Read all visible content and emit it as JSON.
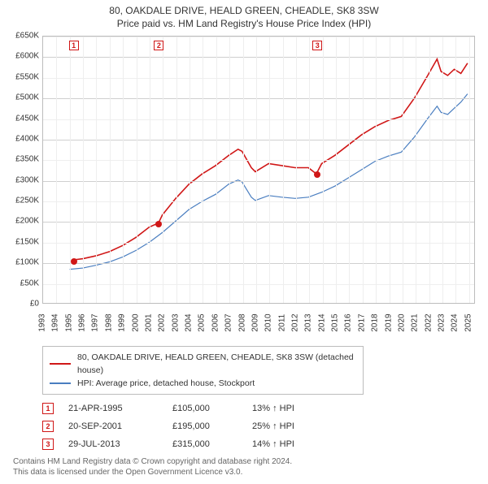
{
  "title_line1": "80, OAKDALE DRIVE, HEALD GREEN, CHEADLE, SK8 3SW",
  "title_line2": "Price paid vs. HM Land Registry's House Price Index (HPI)",
  "chart": {
    "type": "line",
    "background_color": "#ffffff",
    "border_color": "#bcbcbc",
    "grid_major_color": "#cfcfcf",
    "grid_minor_color": "#eeeeee",
    "text_color": "#333333",
    "label_fontsize": 10,
    "x": {
      "min": 1993,
      "max": 2025.5,
      "ticks": [
        1993,
        1994,
        1995,
        1996,
        1997,
        1998,
        1999,
        2000,
        2001,
        2002,
        2003,
        2004,
        2005,
        2006,
        2007,
        2008,
        2009,
        2010,
        2011,
        2012,
        2013,
        2014,
        2015,
        2016,
        2017,
        2018,
        2019,
        2020,
        2021,
        2022,
        2023,
        2024,
        2025
      ]
    },
    "y": {
      "min": 0,
      "max": 650000,
      "tick_step": 50000,
      "labels": [
        "£0",
        "£50K",
        "£100K",
        "£150K",
        "£200K",
        "£250K",
        "£300K",
        "£350K",
        "£400K",
        "£450K",
        "£500K",
        "£550K",
        "£600K",
        "£650K"
      ]
    },
    "series": [
      {
        "name": "80, OAKDALE DRIVE, HEALD GREEN, CHEADLE, SK8 3SW (detached house)",
        "color": "#d01717",
        "width": 1.6,
        "points": [
          [
            1995.3,
            105000
          ],
          [
            1996,
            108000
          ],
          [
            1997,
            115000
          ],
          [
            1998,
            125000
          ],
          [
            1999,
            140000
          ],
          [
            2000,
            160000
          ],
          [
            2001,
            185000
          ],
          [
            2001.7,
            195000
          ],
          [
            2002,
            215000
          ],
          [
            2003,
            255000
          ],
          [
            2004,
            290000
          ],
          [
            2005,
            315000
          ],
          [
            2006,
            335000
          ],
          [
            2007,
            360000
          ],
          [
            2007.7,
            375000
          ],
          [
            2008,
            370000
          ],
          [
            2008.7,
            330000
          ],
          [
            2009,
            320000
          ],
          [
            2010,
            340000
          ],
          [
            2011,
            335000
          ],
          [
            2012,
            330000
          ],
          [
            2013,
            330000
          ],
          [
            2013.6,
            315000
          ],
          [
            2014,
            340000
          ],
          [
            2015,
            360000
          ],
          [
            2016,
            385000
          ],
          [
            2017,
            410000
          ],
          [
            2018,
            430000
          ],
          [
            2019,
            445000
          ],
          [
            2020,
            455000
          ],
          [
            2021,
            500000
          ],
          [
            2022,
            555000
          ],
          [
            2022.7,
            595000
          ],
          [
            2023,
            565000
          ],
          [
            2023.5,
            555000
          ],
          [
            2024,
            570000
          ],
          [
            2024.5,
            560000
          ],
          [
            2025,
            585000
          ]
        ]
      },
      {
        "name": "HPI: Average price, detached house, Stockport",
        "color": "#4a7ec0",
        "width": 1.2,
        "points": [
          [
            1995,
            82000
          ],
          [
            1996,
            85000
          ],
          [
            1997,
            92000
          ],
          [
            1998,
            100000
          ],
          [
            1999,
            112000
          ],
          [
            2000,
            128000
          ],
          [
            2001,
            148000
          ],
          [
            2002,
            172000
          ],
          [
            2003,
            200000
          ],
          [
            2004,
            228000
          ],
          [
            2005,
            248000
          ],
          [
            2006,
            265000
          ],
          [
            2007,
            290000
          ],
          [
            2007.7,
            300000
          ],
          [
            2008,
            295000
          ],
          [
            2008.7,
            258000
          ],
          [
            2009,
            250000
          ],
          [
            2010,
            262000
          ],
          [
            2011,
            258000
          ],
          [
            2012,
            255000
          ],
          [
            2013,
            258000
          ],
          [
            2014,
            270000
          ],
          [
            2015,
            285000
          ],
          [
            2016,
            305000
          ],
          [
            2017,
            325000
          ],
          [
            2018,
            345000
          ],
          [
            2019,
            358000
          ],
          [
            2020,
            368000
          ],
          [
            2021,
            405000
          ],
          [
            2022,
            450000
          ],
          [
            2022.7,
            480000
          ],
          [
            2023,
            465000
          ],
          [
            2023.5,
            460000
          ],
          [
            2024,
            475000
          ],
          [
            2024.5,
            490000
          ],
          [
            2025,
            510000
          ]
        ]
      }
    ],
    "markers": [
      {
        "n": "1",
        "x": 1995.3,
        "y_top": 628000,
        "dot_y": 105000,
        "color": "#d01717"
      },
      {
        "n": "2",
        "x": 2001.7,
        "y_top": 628000,
        "dot_y": 195000,
        "color": "#d01717"
      },
      {
        "n": "3",
        "x": 2013.6,
        "y_top": 628000,
        "dot_y": 315000,
        "color": "#d01717"
      }
    ]
  },
  "legend": [
    {
      "color": "#d01717",
      "label": "80, OAKDALE DRIVE, HEALD GREEN, CHEADLE, SK8 3SW (detached house)"
    },
    {
      "color": "#4a7ec0",
      "label": "HPI: Average price, detached house, Stockport"
    }
  ],
  "events": [
    {
      "n": "1",
      "date": "21-APR-1995",
      "price": "£105,000",
      "delta": "13% ↑ HPI",
      "color": "#d01717"
    },
    {
      "n": "2",
      "date": "20-SEP-2001",
      "price": "£195,000",
      "delta": "25% ↑ HPI",
      "color": "#d01717"
    },
    {
      "n": "3",
      "date": "29-JUL-2013",
      "price": "£315,000",
      "delta": "14% ↑ HPI",
      "color": "#d01717"
    }
  ],
  "attribution_line1": "Contains HM Land Registry data © Crown copyright and database right 2024.",
  "attribution_line2": "This data is licensed under the Open Government Licence v3.0."
}
